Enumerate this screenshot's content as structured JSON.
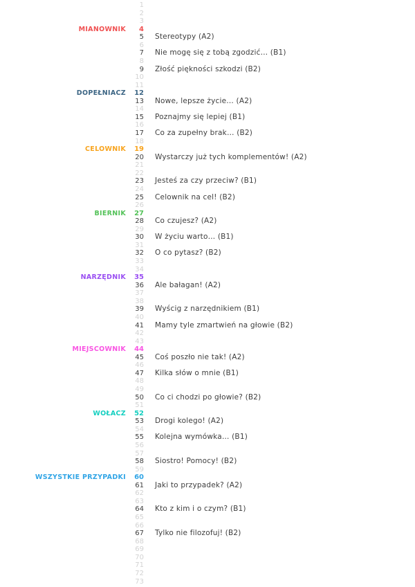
{
  "page": {
    "background": "#ffffff",
    "lesson_text_color": "#3d3d3d",
    "muted_number_color": "#d2d2d2"
  },
  "toc": {
    "first_page": 1,
    "last_page": 73,
    "sections": [
      {
        "label": "MIANOWNIK",
        "page": 4,
        "color": "#f05152",
        "lessons": [
          {
            "page": 5,
            "title": "Stereotypy (A2)"
          },
          {
            "page": 7,
            "title": "Nie mogę się z tobą zgodzić… (B1)"
          },
          {
            "page": 9,
            "title": "Złość piękności szkodzi (B2)"
          }
        ]
      },
      {
        "label": "DOPEŁNIACZ",
        "page": 12,
        "color": "#3c6584",
        "lessons": [
          {
            "page": 13,
            "title": "Nowe, lepsze życie… (A2)"
          },
          {
            "page": 15,
            "title": "Poznajmy się lepiej (B1)"
          },
          {
            "page": 17,
            "title": "Co za zupełny brak… (B2)"
          }
        ]
      },
      {
        "label": "CELOWNIK",
        "page": 19,
        "color": "#f8a41f",
        "lessons": [
          {
            "page": 20,
            "title": "Wystarczy już tych komplementów! (A2)"
          },
          {
            "page": 23,
            "title": "Jesteś za czy przeciw? (B1)"
          },
          {
            "page": 25,
            "title": "Celownik na cel! (B2)"
          }
        ]
      },
      {
        "label": "BIERNIK",
        "page": 27,
        "color": "#53c258",
        "lessons": [
          {
            "page": 28,
            "title": "Co czujesz? (A2)"
          },
          {
            "page": 30,
            "title": "W życiu warto… (B1)"
          },
          {
            "page": 32,
            "title": "O co pytasz? (B2)"
          }
        ]
      },
      {
        "label": "NARZĘDNIK",
        "page": 35,
        "color": "#9a4ff2",
        "lessons": [
          {
            "page": 36,
            "title": "Ale bałagan! (A2)"
          },
          {
            "page": 39,
            "title": "Wyścig z narzędnikiem (B1)"
          },
          {
            "page": 41,
            "title": "Mamy tyle zmartwień na głowie (B2)"
          }
        ]
      },
      {
        "label": "MIEJSCOWNIK",
        "page": 44,
        "color": "#f955e3",
        "lessons": [
          {
            "page": 45,
            "title": "Coś poszło nie tak! (A2)"
          },
          {
            "page": 47,
            "title": "Kilka słów o mnie (B1)"
          },
          {
            "page": 50,
            "title": "Co ci chodzi po głowie? (B2)"
          }
        ]
      },
      {
        "label": "WOŁACZ",
        "page": 52,
        "color": "#14cfc0",
        "lessons": [
          {
            "page": 53,
            "title": "Drogi kolego! (A2)"
          },
          {
            "page": 55,
            "title": "Kolejna wymówka… (B1)"
          },
          {
            "page": 58,
            "title": "Siostro! Pomocy! (B2)"
          }
        ]
      },
      {
        "label": "WSZYSTKIE PRZYPADKI",
        "page": 60,
        "color": "#31a5e6",
        "lessons": [
          {
            "page": 61,
            "title": "Jaki to przypadek? (A2)"
          },
          {
            "page": 64,
            "title": "Kto z kim i o czym? (B1)"
          },
          {
            "page": 67,
            "title": "Tylko nie filozofuj! (B2)"
          }
        ]
      }
    ]
  }
}
